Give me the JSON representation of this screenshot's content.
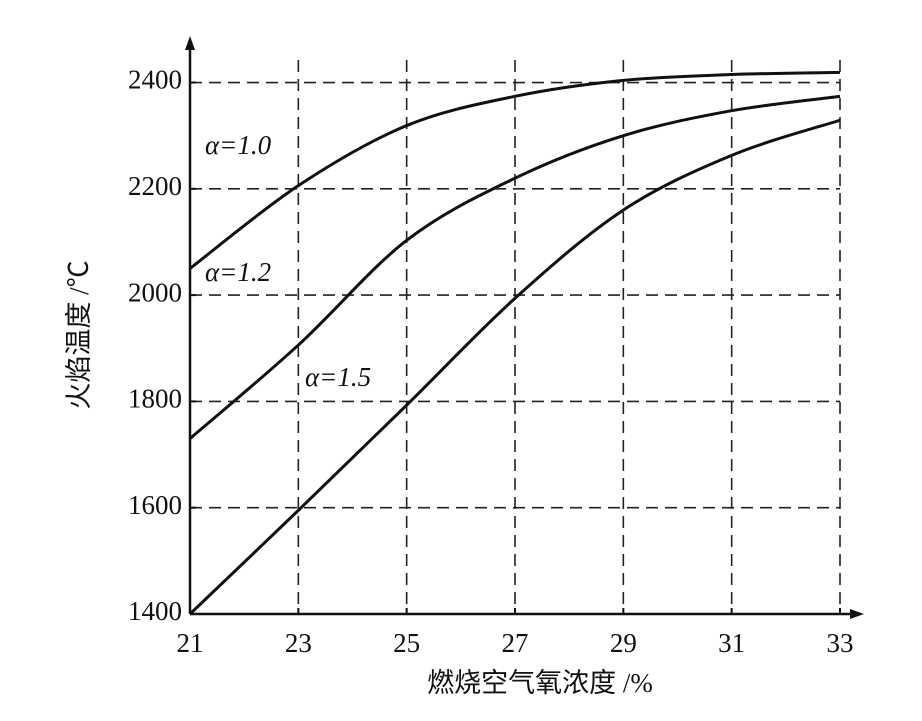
{
  "chart_data": {
    "type": "line",
    "x_label": "燃烧空气氧浓度 /%",
    "y_label": "火焰温度 /℃",
    "x": [
      21,
      23,
      25,
      27,
      29,
      31,
      33
    ],
    "series": [
      {
        "name": "α=1.0",
        "color": "#111111",
        "values": [
          2050,
          2206,
          2319,
          2374,
          2404,
          2415,
          2419
        ]
      },
      {
        "name": "α=1.2",
        "color": "#111111",
        "values": [
          1730,
          1906,
          2103,
          2220,
          2300,
          2347,
          2374
        ]
      },
      {
        "name": "α=1.5",
        "color": "#111111",
        "values": [
          1400,
          1595,
          1793,
          1994,
          2160,
          2263,
          2329
        ]
      }
    ],
    "xlim": [
      21,
      33
    ],
    "xticks": [
      21,
      23,
      25,
      27,
      29,
      31,
      33
    ],
    "ylim": [
      1400,
      2480
    ],
    "yticks": [
      1400,
      1600,
      1800,
      2000,
      2200,
      2400
    ],
    "grid": true
  }
}
